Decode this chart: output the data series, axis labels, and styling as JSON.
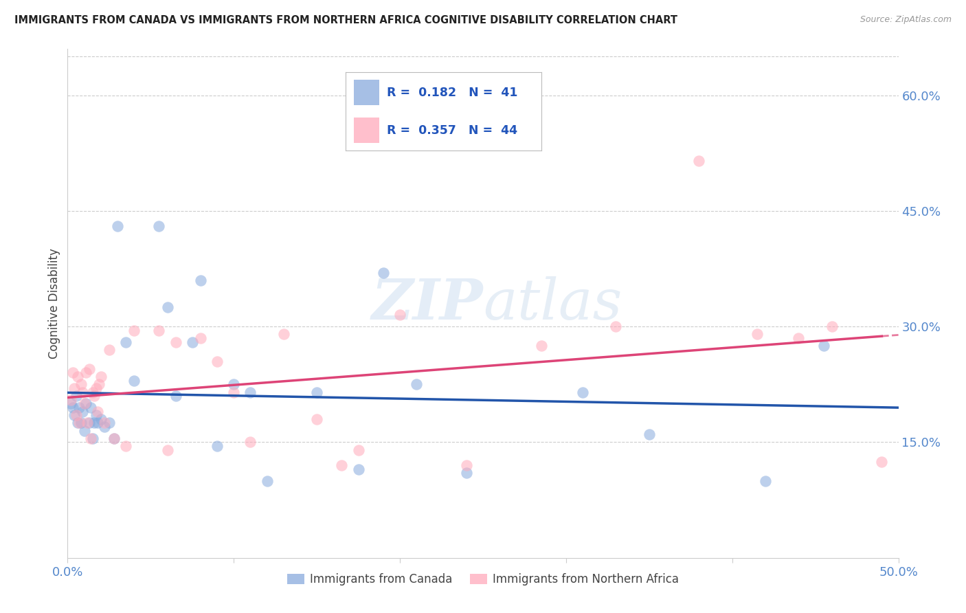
{
  "title": "IMMIGRANTS FROM CANADA VS IMMIGRANTS FROM NORTHERN AFRICA COGNITIVE DISABILITY CORRELATION CHART",
  "source": "Source: ZipAtlas.com",
  "ylabel": "Cognitive Disability",
  "watermark": "ZIPatlas",
  "xlim": [
    0.0,
    0.5
  ],
  "ylim": [
    0.0,
    0.66
  ],
  "xticks": [
    0.0,
    0.1,
    0.2,
    0.3,
    0.4,
    0.5
  ],
  "xticklabels": [
    "0.0%",
    "",
    "",
    "",
    "",
    "50.0%"
  ],
  "yticks": [
    0.15,
    0.3,
    0.45,
    0.6
  ],
  "yticklabels": [
    "15.0%",
    "30.0%",
    "45.0%",
    "60.0%"
  ],
  "legend1_label": "Immigrants from Canada",
  "legend2_label": "Immigrants from Northern Africa",
  "R1": 0.182,
  "N1": 41,
  "R2": 0.357,
  "N2": 44,
  "color_blue": "#88aadd",
  "color_pink": "#ffaabb",
  "color_line_blue": "#2255aa",
  "color_line_pink": "#dd4477",
  "scatter_alpha": 0.55,
  "scatter_size": 140,
  "canada_x": [
    0.002,
    0.003,
    0.004,
    0.005,
    0.006,
    0.007,
    0.008,
    0.009,
    0.01,
    0.011,
    0.013,
    0.014,
    0.015,
    0.016,
    0.017,
    0.018,
    0.02,
    0.022,
    0.025,
    0.028,
    0.03,
    0.035,
    0.04,
    0.055,
    0.06,
    0.065,
    0.075,
    0.08,
    0.09,
    0.1,
    0.11,
    0.12,
    0.15,
    0.175,
    0.19,
    0.21,
    0.24,
    0.31,
    0.35,
    0.42,
    0.455
  ],
  "canada_y": [
    0.2,
    0.195,
    0.185,
    0.21,
    0.175,
    0.195,
    0.175,
    0.19,
    0.165,
    0.2,
    0.175,
    0.195,
    0.155,
    0.175,
    0.185,
    0.175,
    0.18,
    0.17,
    0.175,
    0.155,
    0.43,
    0.28,
    0.23,
    0.43,
    0.325,
    0.21,
    0.28,
    0.36,
    0.145,
    0.225,
    0.215,
    0.1,
    0.215,
    0.115,
    0.37,
    0.225,
    0.11,
    0.215,
    0.16,
    0.1,
    0.275
  ],
  "n_africa_x": [
    0.002,
    0.003,
    0.004,
    0.005,
    0.006,
    0.007,
    0.008,
    0.009,
    0.01,
    0.011,
    0.012,
    0.013,
    0.014,
    0.015,
    0.016,
    0.017,
    0.018,
    0.019,
    0.02,
    0.022,
    0.025,
    0.028,
    0.035,
    0.04,
    0.055,
    0.06,
    0.065,
    0.08,
    0.09,
    0.1,
    0.11,
    0.13,
    0.15,
    0.165,
    0.175,
    0.2,
    0.24,
    0.285,
    0.33,
    0.38,
    0.415,
    0.44,
    0.46,
    0.49
  ],
  "n_africa_y": [
    0.205,
    0.24,
    0.22,
    0.185,
    0.235,
    0.175,
    0.225,
    0.215,
    0.2,
    0.24,
    0.175,
    0.245,
    0.155,
    0.215,
    0.21,
    0.22,
    0.19,
    0.225,
    0.235,
    0.175,
    0.27,
    0.155,
    0.145,
    0.295,
    0.295,
    0.14,
    0.28,
    0.285,
    0.255,
    0.215,
    0.15,
    0.29,
    0.18,
    0.12,
    0.14,
    0.315,
    0.12,
    0.275,
    0.3,
    0.515,
    0.29,
    0.285,
    0.3,
    0.125
  ]
}
